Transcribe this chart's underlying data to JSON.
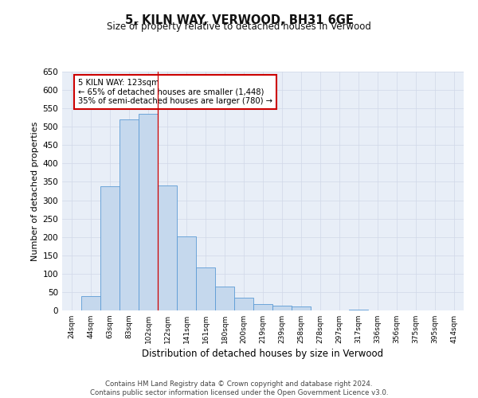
{
  "title": "5, KILN WAY, VERWOOD, BH31 6GE",
  "subtitle": "Size of property relative to detached houses in Verwood",
  "xlabel": "Distribution of detached houses by size in Verwood",
  "ylabel": "Number of detached properties",
  "categories": [
    "24sqm",
    "44sqm",
    "63sqm",
    "83sqm",
    "102sqm",
    "122sqm",
    "141sqm",
    "161sqm",
    "180sqm",
    "200sqm",
    "219sqm",
    "239sqm",
    "258sqm",
    "278sqm",
    "297sqm",
    "317sqm",
    "336sqm",
    "356sqm",
    "375sqm",
    "395sqm",
    "414sqm"
  ],
  "values": [
    0,
    40,
    338,
    520,
    536,
    340,
    202,
    117,
    66,
    35,
    17,
    12,
    10,
    0,
    0,
    3,
    0,
    0,
    0,
    0,
    0
  ],
  "bar_color": "#c5d8ed",
  "bar_edge_color": "#5b9bd5",
  "annotation_text_line1": "5 KILN WAY: 123sqm",
  "annotation_text_line2": "← 65% of detached houses are smaller (1,448)",
  "annotation_text_line3": "35% of semi-detached houses are larger (780) →",
  "vline_x_index": 5,
  "ylim": [
    0,
    650
  ],
  "yticks": [
    0,
    50,
    100,
    150,
    200,
    250,
    300,
    350,
    400,
    450,
    500,
    550,
    600,
    650
  ],
  "background_color": "#ffffff",
  "grid_color": "#d0d8e8",
  "footer_line1": "Contains HM Land Registry data © Crown copyright and database right 2024.",
  "footer_line2": "Contains public sector information licensed under the Open Government Licence v3.0."
}
